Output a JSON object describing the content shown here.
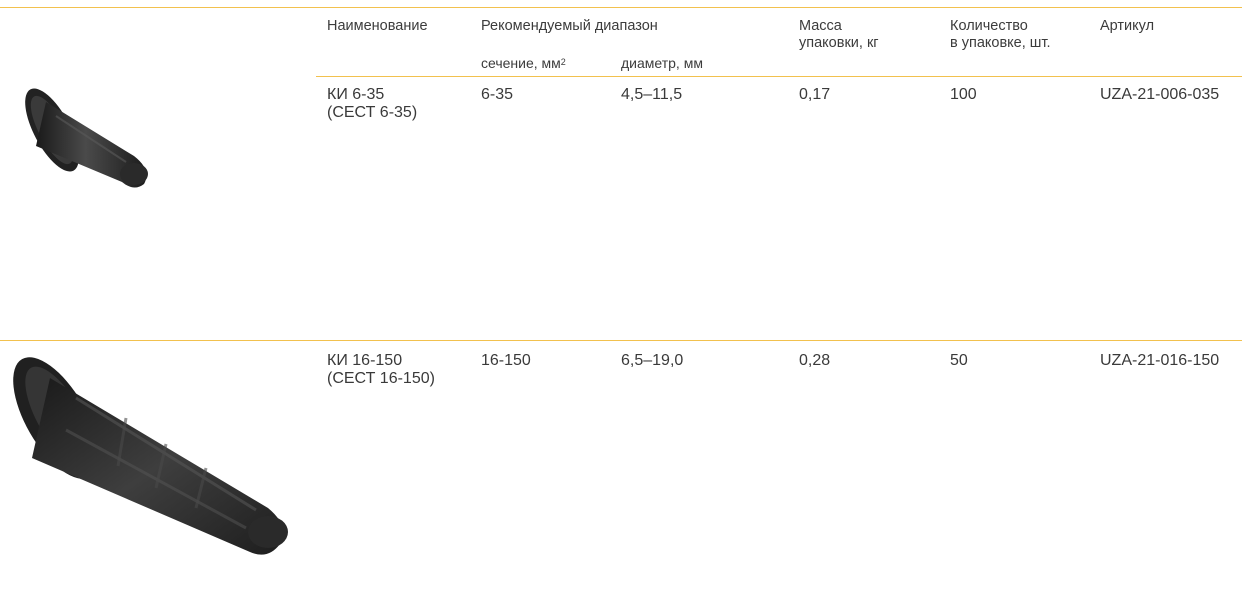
{
  "header": {
    "name": "Наименование",
    "range": "Рекомендуемый диапазон",
    "section": "сечение, мм",
    "section_sup": "2",
    "diameter": "диаметр, мм",
    "mass_line1": "Масса",
    "mass_line2": "упаковки, кг",
    "qty_line1": "Количество",
    "qty_line2": "в упаковке, шт.",
    "article": "Артикул"
  },
  "products": [
    {
      "name_line1": "КИ 6-35",
      "name_line2": "(СЕСТ 6-35)",
      "section": "6-35",
      "diameter": "4,5–11,5",
      "mass": "0,17",
      "quantity": "100",
      "article": "UZA-21-006-035",
      "image_icon": "cable-end-cap-small-icon"
    },
    {
      "name_line1": "КИ 16-150",
      "name_line2": "(СЕСТ 16-150)",
      "section": "16-150",
      "diameter": "6,5–19,0",
      "mass": "0,28",
      "quantity": "50",
      "article": "UZA-21-016-150",
      "image_icon": "cable-end-cap-large-icon"
    }
  ],
  "colors": {
    "rule": "#f2c14e",
    "text": "#3a3a3a",
    "rubber": "#2b2b2b"
  }
}
